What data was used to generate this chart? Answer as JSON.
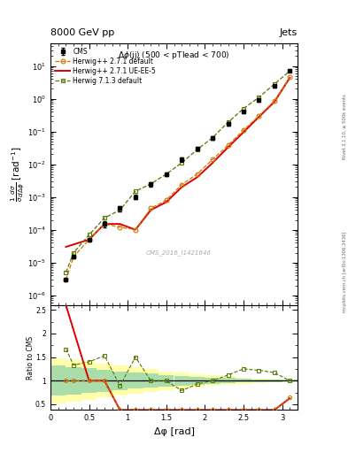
{
  "title_top_left": "8000 GeV pp",
  "title_top_right": "Jets",
  "plot_title": "Δφ(jj) (500 < pTlead < 700)",
  "watermark": "CMS_2016_I1421646",
  "xlabel": "Δφ [rad]",
  "ylabel_ratio": "Ratio to CMS",
  "side_text": "Rivet 3.1.10, ≥ 500k events",
  "side_text2": "mcplots.cern.ch [arXiv:1306.3436]",
  "cms_x": [
    0.2,
    0.3,
    0.5,
    0.7,
    0.9,
    1.1,
    1.3,
    1.5,
    1.7,
    1.9,
    2.1,
    2.3,
    2.5,
    2.7,
    2.9,
    3.1
  ],
  "cms_y": [
    3e-06,
    1.5e-05,
    5e-05,
    0.00015,
    0.00045,
    0.001,
    0.0025,
    0.005,
    0.014,
    0.03,
    0.065,
    0.17,
    0.4,
    0.9,
    2.4,
    7.0
  ],
  "cms_yerr": [
    0,
    0,
    0,
    3e-05,
    8e-05,
    0.00015,
    0.0004,
    0.0007,
    0.002,
    0.004,
    0.008,
    0.018,
    0.035,
    0.07,
    0.18,
    0.45
  ],
  "hw271d_x": [
    0.2,
    0.3,
    0.5,
    0.7,
    0.9,
    1.1,
    1.3,
    1.5,
    1.7,
    1.9,
    2.1,
    2.3,
    2.5,
    2.7,
    2.9,
    3.1
  ],
  "hw271d_y": [
    3e-06,
    1.5e-05,
    5e-05,
    0.00015,
    0.00012,
    0.0001,
    0.00045,
    0.0008,
    0.0024,
    0.005,
    0.014,
    0.038,
    0.11,
    0.3,
    0.85,
    4.5
  ],
  "hw271d_color": "#cc7700",
  "hw271ue_x": [
    0.2,
    0.5,
    0.7,
    0.9,
    1.1,
    1.3,
    1.5,
    1.7,
    1.9,
    2.1,
    2.3,
    2.5,
    2.7,
    2.9,
    3.1
  ],
  "hw271ue_y": [
    3e-05,
    5e-05,
    0.00015,
    0.00015,
    0.0001,
    0.0004,
    0.0007,
    0.002,
    0.004,
    0.011,
    0.033,
    0.095,
    0.28,
    0.8,
    4.4
  ],
  "hw271ue_color": "#dd0000",
  "hw713d_x": [
    0.2,
    0.3,
    0.5,
    0.7,
    0.9,
    1.1,
    1.3,
    1.5,
    1.7,
    1.9,
    2.1,
    2.3,
    2.5,
    2.7,
    2.9,
    3.1
  ],
  "hw713d_y": [
    5e-06,
    2e-05,
    7e-05,
    0.00023,
    0.0004,
    0.0015,
    0.0025,
    0.005,
    0.011,
    0.028,
    0.065,
    0.19,
    0.5,
    1.1,
    2.8,
    7.0
  ],
  "hw713d_color": "#557700",
  "xlim": [
    0.0,
    3.2
  ],
  "ylim_main": [
    5e-07,
    50.0
  ],
  "ylim_ratio": [
    0.38,
    2.6
  ],
  "ratio_hw271d_x": [
    0.2,
    0.3,
    0.5,
    0.7,
    0.9,
    1.1,
    1.3,
    1.5,
    1.7,
    1.9,
    2.1,
    2.3,
    2.5,
    2.7,
    2.9,
    3.1
  ],
  "ratio_hw271d_y": [
    1.0,
    1.0,
    1.0,
    1.0,
    0.27,
    0.1,
    0.18,
    0.16,
    0.17,
    0.17,
    0.215,
    0.224,
    0.275,
    0.333,
    0.354,
    0.643
  ],
  "ratio_hw271ue_x": [
    0.2,
    0.5,
    0.7,
    0.9,
    1.1,
    1.3,
    1.5,
    1.7,
    1.9,
    2.1,
    2.3,
    2.5,
    2.7,
    2.9,
    3.1
  ],
  "ratio_hw271ue_y": [
    10.0,
    1.0,
    1.0,
    0.33,
    0.1,
    0.16,
    0.14,
    0.143,
    0.133,
    0.169,
    0.194,
    0.238,
    0.311,
    0.333,
    0.629
  ],
  "ratio_hw713d_x": [
    0.2,
    0.3,
    0.5,
    0.7,
    0.9,
    1.1,
    1.3,
    1.5,
    1.7,
    1.9,
    2.1,
    2.3,
    2.5,
    2.7,
    2.9,
    3.1
  ],
  "ratio_hw713d_y": [
    1.67,
    1.33,
    1.4,
    1.53,
    0.89,
    1.5,
    1.0,
    1.0,
    0.79,
    0.93,
    1.0,
    1.12,
    1.25,
    1.22,
    1.17,
    1.0
  ],
  "band_x_edges": [
    0.0,
    0.2,
    0.4,
    0.6,
    0.8,
    1.0,
    1.2,
    1.4,
    1.6,
    1.8,
    2.0,
    2.2,
    2.4,
    2.6,
    2.8,
    3.0,
    3.2
  ],
  "band_yellow_half": [
    0.48,
    0.44,
    0.4,
    0.36,
    0.32,
    0.28,
    0.24,
    0.2,
    0.17,
    0.14,
    0.11,
    0.09,
    0.07,
    0.05,
    0.04,
    0.03
  ],
  "band_green_half": [
    0.32,
    0.29,
    0.26,
    0.23,
    0.2,
    0.17,
    0.15,
    0.12,
    0.1,
    0.08,
    0.065,
    0.055,
    0.04,
    0.03,
    0.025,
    0.02
  ]
}
